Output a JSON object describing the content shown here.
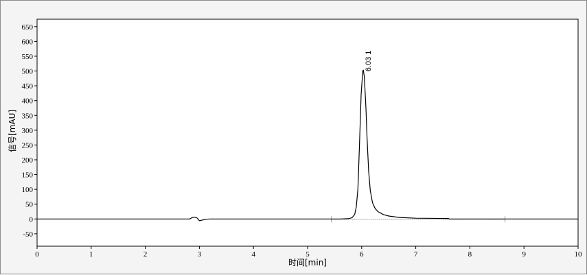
{
  "chart_data": {
    "type": "line",
    "title": "",
    "xlabel": "时间[min]",
    "ylabel": "信号[mAU]",
    "xlim": [
      0,
      10
    ],
    "ylim": [
      -92,
      675
    ],
    "xticks": [
      "0",
      "1",
      "2",
      "3",
      "4",
      "5",
      "6",
      "7",
      "8",
      "9",
      "10"
    ],
    "yticks": [
      "650",
      "600",
      "550",
      "500",
      "450",
      "400",
      "350",
      "300",
      "250",
      "200",
      "150",
      "100",
      "50",
      "0",
      "-50"
    ],
    "grid": false,
    "line_color": "#000000",
    "baseline_color": "#999999",
    "series": [
      {
        "points": [
          [
            0,
            0
          ],
          [
            2.82,
            0
          ],
          [
            2.87,
            5
          ],
          [
            2.92,
            6
          ],
          [
            2.96,
            3
          ],
          [
            3.0,
            -6
          ],
          [
            3.05,
            -4
          ],
          [
            3.12,
            -1
          ],
          [
            3.2,
            0
          ],
          [
            5.6,
            0
          ],
          [
            5.75,
            1
          ],
          [
            5.82,
            4
          ],
          [
            5.87,
            15
          ],
          [
            5.9,
            40
          ],
          [
            5.93,
            100
          ],
          [
            5.96,
            250
          ],
          [
            5.99,
            420
          ],
          [
            6.02,
            500
          ],
          [
            6.03,
            503
          ],
          [
            6.05,
            480
          ],
          [
            6.08,
            370
          ],
          [
            6.1,
            270
          ],
          [
            6.13,
            160
          ],
          [
            6.16,
            95
          ],
          [
            6.2,
            55
          ],
          [
            6.25,
            35
          ],
          [
            6.3,
            25
          ],
          [
            6.4,
            15
          ],
          [
            6.5,
            10
          ],
          [
            6.7,
            5
          ],
          [
            7.0,
            2.5
          ],
          [
            7.6,
            1.5
          ],
          [
            7.62,
            0
          ],
          [
            10,
            0
          ]
        ]
      }
    ],
    "peak_baseline": [
      5.44,
      8.65
    ],
    "annotations": [
      {
        "x": 6.03,
        "y": 503,
        "text": "6.03  1"
      }
    ]
  }
}
